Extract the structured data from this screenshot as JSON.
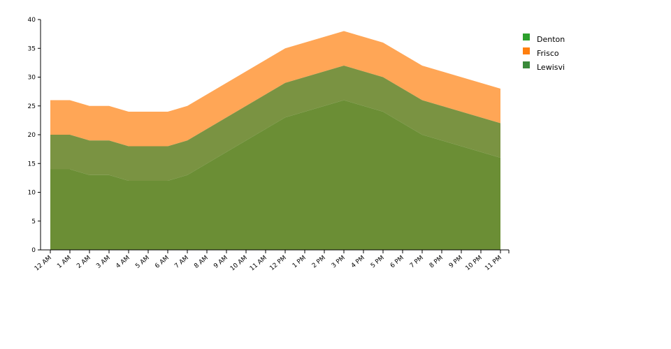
{
  "chart_data": {
    "type": "area",
    "stacked": true,
    "categories": [
      "12 AM",
      "1 AM",
      "2 AM",
      "3 AM",
      "4 AM",
      "5 AM",
      "6 AM",
      "7 AM",
      "8 AM",
      "9 AM",
      "10 AM",
      "11 AM",
      "12 PM",
      "1 PM",
      "2 PM",
      "3 PM",
      "4 PM",
      "5 PM",
      "6 PM",
      "7 PM",
      "8 PM",
      "9 PM",
      "10 PM",
      "11 PM"
    ],
    "y_ticks": [
      0,
      5,
      10,
      15,
      20,
      25,
      30,
      35,
      40
    ],
    "ylim": [
      0,
      40
    ],
    "series": [
      {
        "name": "Lewisvi",
        "color": "#6b8e35",
        "values": [
          14,
          14,
          13,
          13,
          12,
          12,
          12,
          13,
          15,
          17,
          19,
          21,
          23,
          24,
          25,
          26,
          25,
          24,
          22,
          20,
          19,
          18,
          17,
          16
        ]
      },
      {
        "name": "Denton",
        "color": "#7a9342",
        "values": [
          6,
          6,
          6,
          6,
          6,
          6,
          6,
          6,
          6,
          6,
          6,
          6,
          6,
          6,
          6,
          6,
          6,
          6,
          6,
          6,
          6,
          6,
          6,
          6
        ]
      },
      {
        "name": "Frisco",
        "color": "#ffa656",
        "values": [
          6,
          6,
          6,
          6,
          6,
          6,
          6,
          6,
          6,
          6,
          6,
          6,
          6,
          6,
          6,
          6,
          6,
          6,
          6,
          6,
          6,
          6,
          6,
          6
        ]
      }
    ],
    "legend": {
      "placement": "top-right",
      "entries": [
        {
          "label": "Denton",
          "color": "#2ca02c"
        },
        {
          "label": "Frisco",
          "color": "#ff7f0e"
        },
        {
          "label": "Lewisvi",
          "color": "#3a8a3a"
        }
      ]
    }
  }
}
